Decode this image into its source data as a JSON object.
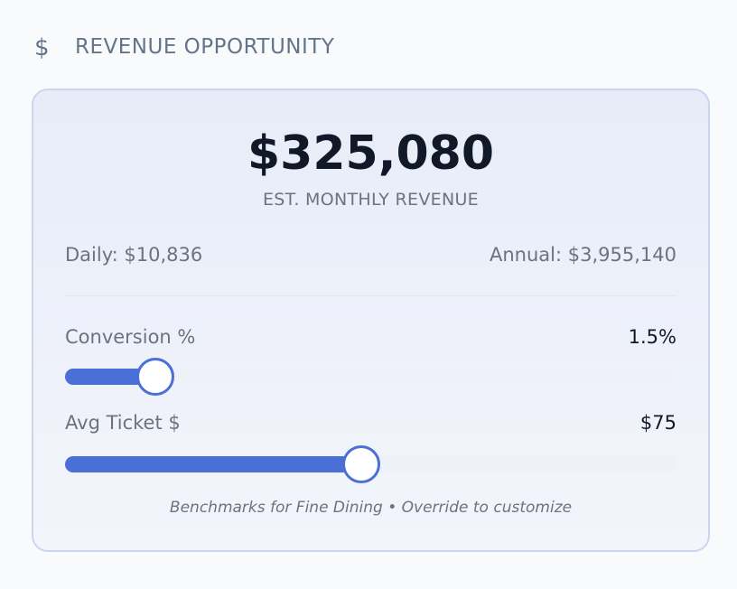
{
  "header": {
    "icon": "$",
    "title": "REVENUE OPPORTUNITY"
  },
  "card": {
    "monthly_revenue": "$325,080",
    "monthly_caption": "EST. MONTHLY REVENUE",
    "daily": "Daily: $10,836",
    "annual": "Annual: $3,955,140",
    "sliders": [
      {
        "label": "Conversion %",
        "value": "1.5%"
      },
      {
        "label": "Avg Ticket $",
        "value": "$75"
      }
    ],
    "footnote": "Benchmarks for Fine Dining • Override to customize"
  }
}
